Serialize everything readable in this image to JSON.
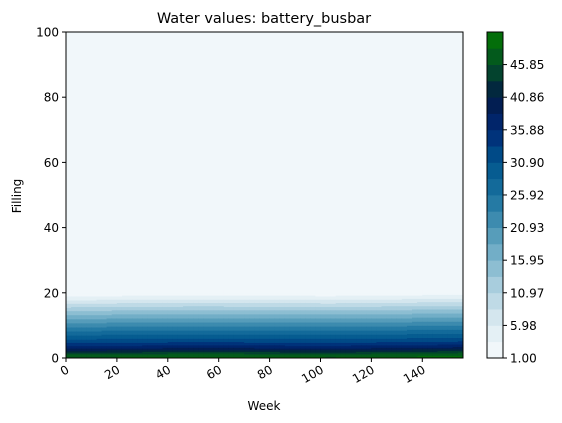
{
  "chart_data": {
    "type": "heatmap",
    "title": "Water values: battery_busbar",
    "xlabel": "Week",
    "ylabel": "Filling",
    "xlim": [
      0,
      156
    ],
    "ylim": [
      0,
      100
    ],
    "x_ticks": [
      0,
      20,
      40,
      60,
      80,
      100,
      120,
      140
    ],
    "x_tick_labels": [
      "0",
      "20",
      "40",
      "60",
      "80",
      "100",
      "120",
      "140"
    ],
    "y_ticks": [
      0,
      20,
      40,
      60,
      80,
      100
    ],
    "y_tick_labels": [
      "0",
      "20",
      "40",
      "60",
      "80",
      "100"
    ],
    "colormap": "ocean_r",
    "colorbar": {
      "min": 1.0,
      "max": 50.83,
      "levels": 20,
      "tick_values": [
        1.0,
        5.98,
        10.97,
        15.95,
        20.93,
        25.92,
        30.9,
        35.88,
        40.86,
        45.85
      ],
      "tick_labels": [
        "1.00",
        "5.98",
        "10.97",
        "15.95",
        "20.93",
        "25.92",
        "30.90",
        "35.88",
        "40.86",
        "45.85"
      ]
    },
    "band_profile": {
      "filling": [
        0,
        1,
        2,
        3,
        4,
        5,
        6,
        7,
        8,
        9,
        10,
        11,
        12,
        13,
        14,
        15,
        16,
        17,
        18,
        19,
        20,
        100
      ],
      "value": [
        49.0,
        46.5,
        42.0,
        38.0,
        35.0,
        32.5,
        30.5,
        28.5,
        26.5,
        24.5,
        22.5,
        20.5,
        18.5,
        16.5,
        14.5,
        12.5,
        10.0,
        8.0,
        5.5,
        3.5,
        1.0,
        1.0
      ]
    },
    "band_drift_weeks": [
      0,
      52,
      104,
      156
    ],
    "band_drift_filling": [
      0,
      0.3,
      0.1,
      0.5
    ]
  }
}
